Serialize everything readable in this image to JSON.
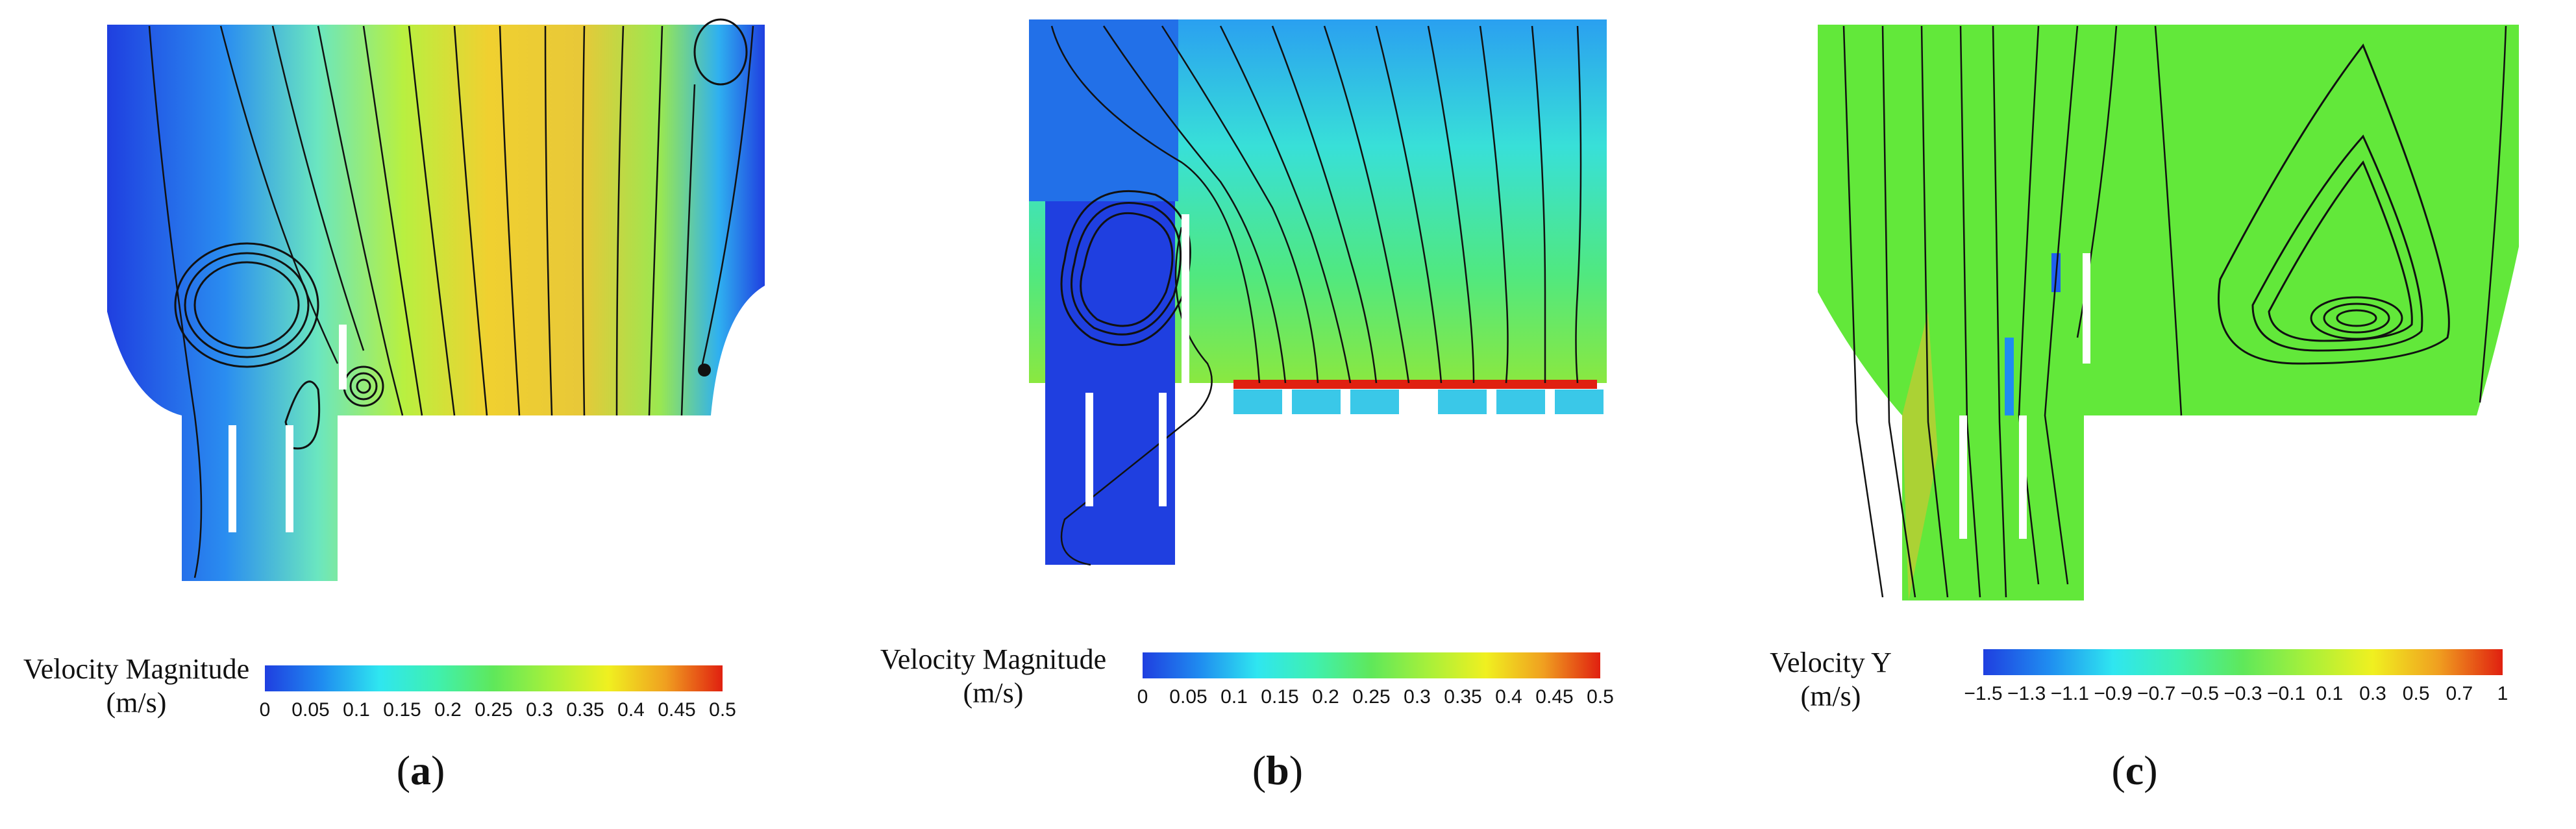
{
  "panels": [
    {
      "id": "a",
      "colorbar_title": "Velocity Magnitude",
      "colorbar_unit": "(m/s)",
      "colorbar_ticks": [
        "0",
        "0.05",
        "0.1",
        "0.15",
        "0.2",
        "0.25",
        "0.3",
        "0.35",
        "0.4",
        "0.45",
        "0.5"
      ],
      "label_open": "(",
      "label_letter": "a",
      "label_close": ")"
    },
    {
      "id": "b",
      "colorbar_title": "Velocity Magnitude",
      "colorbar_unit": "(m/s)",
      "colorbar_ticks": [
        "0",
        "0.05",
        "0.1",
        "0.15",
        "0.2",
        "0.25",
        "0.3",
        "0.35",
        "0.4",
        "0.45",
        "0.5"
      ],
      "label_open": "(",
      "label_letter": "b",
      "label_close": ")"
    },
    {
      "id": "c",
      "colorbar_title": "Velocity Y",
      "colorbar_unit": "(m/s)",
      "colorbar_ticks": [
        "−1.5",
        "−1.3",
        "−1.1",
        "−0.9",
        "−0.7",
        "−0.5",
        "−0.3",
        "−0.1",
        "0.1",
        "0.3",
        "0.5",
        "0.7",
        "1"
      ],
      "label_open": "(",
      "label_letter": "c",
      "label_close": ")"
    }
  ],
  "colors": {
    "rainbow": [
      "#1f3fe0",
      "#1f8cf0",
      "#2fe6f0",
      "#3ff0b0",
      "#5fe85a",
      "#a8f03a",
      "#f0f020",
      "#f0a020",
      "#e02010"
    ],
    "low_blue": "#1f3fe0",
    "mid_green": "#62e83a",
    "streamline": "#111111",
    "baffle": "#ffffff"
  }
}
